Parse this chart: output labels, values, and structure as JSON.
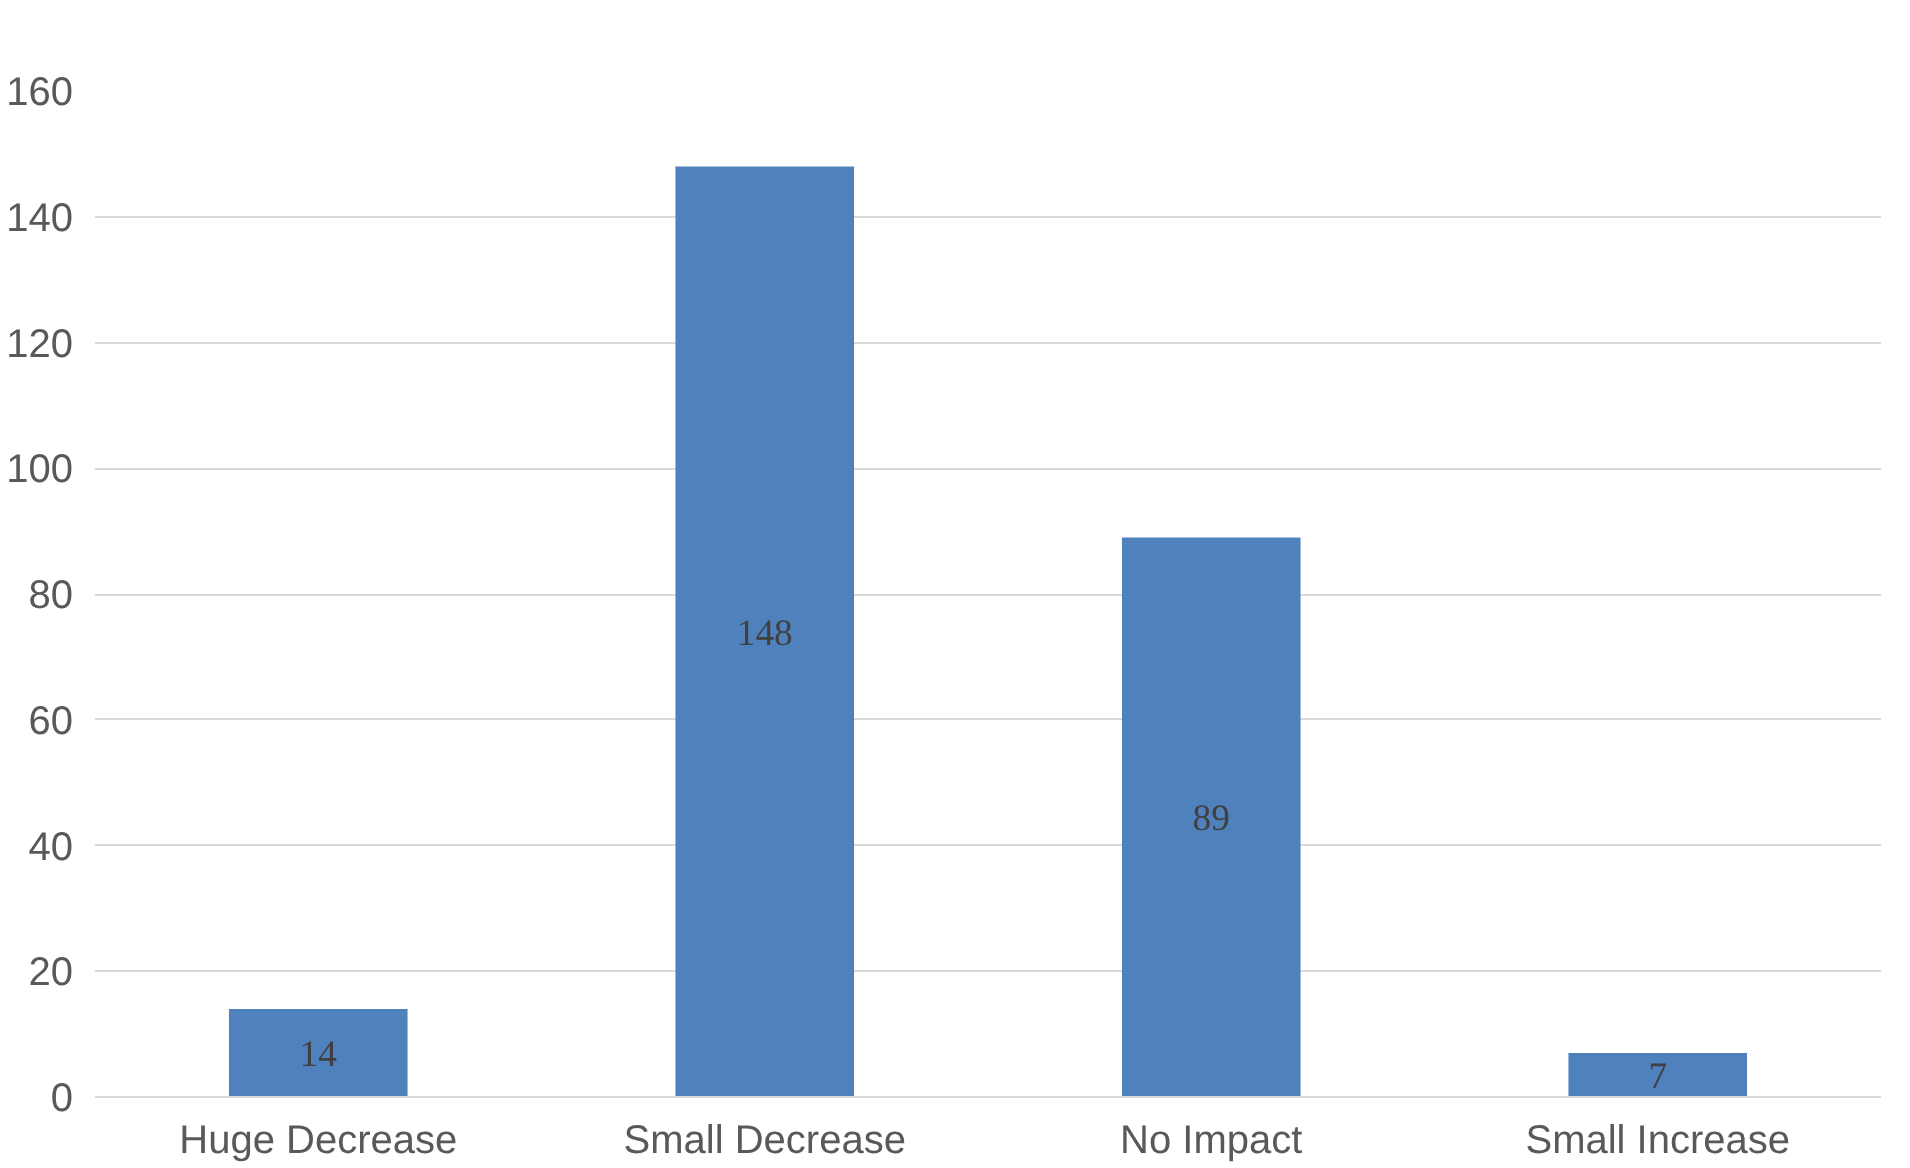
{
  "chart_data": {
    "type": "bar",
    "categories": [
      "Huge Decrease",
      "Small Decrease",
      "No Impact",
      "Small Increase"
    ],
    "values": [
      14,
      148,
      89,
      7
    ],
    "color": "#4f81bd",
    "ylim": [
      0,
      160
    ],
    "yticks": [
      0,
      20,
      40,
      60,
      80,
      100,
      120,
      140,
      160
    ],
    "grid": "y",
    "data_labels": true
  }
}
